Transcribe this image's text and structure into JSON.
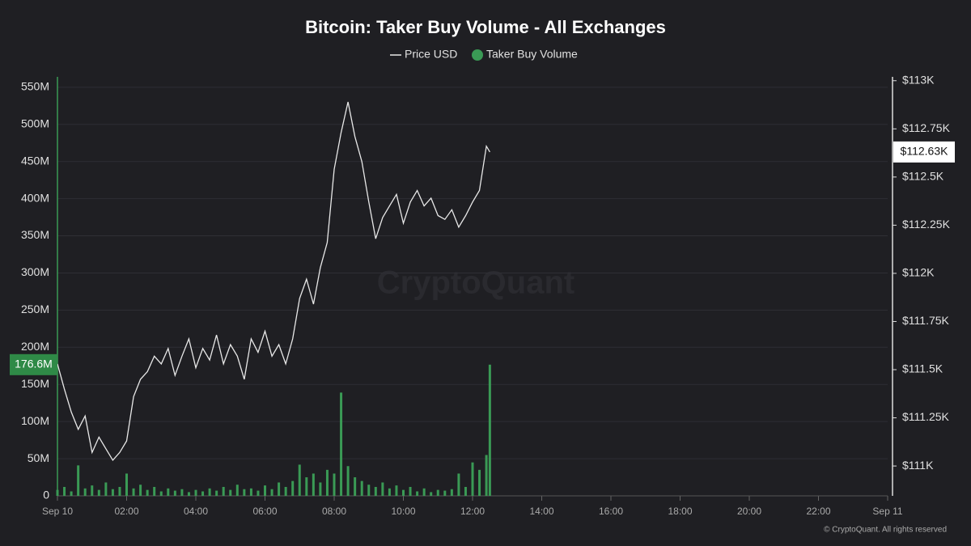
{
  "chart_data": {
    "type": "line",
    "title": "Bitcoin: Taker Buy Volume - All Exchanges",
    "watermark": "CryptoQuant",
    "credit": "© CryptoQuant. All rights reserved",
    "x": [
      0,
      0.2,
      0.4,
      0.6,
      0.8,
      1.0,
      1.2,
      1.4,
      1.6,
      1.8,
      2.0,
      2.2,
      2.4,
      2.6,
      2.8,
      3.0,
      3.2,
      3.4,
      3.6,
      3.8,
      4.0,
      4.2,
      4.4,
      4.6,
      4.8,
      5.0,
      5.2,
      5.4,
      5.6,
      5.8,
      6.0,
      6.2,
      6.4,
      6.6,
      6.8,
      7.0,
      7.2,
      7.4,
      7.6,
      7.8,
      8.0,
      8.2,
      8.4,
      8.6,
      8.8,
      9.0,
      9.2,
      9.4,
      9.6,
      9.8,
      10.0,
      10.2,
      10.4,
      10.6,
      10.8,
      11.0,
      11.2,
      11.4,
      11.6,
      11.8,
      12.0,
      12.2,
      12.4,
      12.5
    ],
    "series": [
      {
        "name": "Price USD",
        "type": "line",
        "axis": "y2",
        "color": "#e8e8e8",
        "values": [
          111.53,
          111.4,
          111.28,
          111.19,
          111.26,
          111.07,
          111.15,
          111.09,
          111.03,
          111.07,
          111.13,
          111.36,
          111.45,
          111.49,
          111.57,
          111.53,
          111.61,
          111.47,
          111.57,
          111.66,
          111.51,
          111.61,
          111.55,
          111.68,
          111.53,
          111.63,
          111.57,
          111.45,
          111.66,
          111.59,
          111.7,
          111.57,
          111.63,
          111.53,
          111.66,
          111.87,
          111.97,
          111.84,
          112.03,
          112.16,
          112.54,
          112.73,
          112.89,
          112.71,
          112.58,
          112.37,
          112.18,
          112.29,
          112.35,
          112.41,
          112.26,
          112.37,
          112.43,
          112.35,
          112.39,
          112.3,
          112.28,
          112.33,
          112.24,
          112.3,
          112.37,
          112.43,
          112.66,
          112.63
        ]
      },
      {
        "name": "Taker Buy Volume",
        "type": "bar",
        "axis": "y",
        "color": "#3a9a55",
        "values": [
          8,
          12,
          6,
          41,
          10,
          14,
          8,
          18,
          9,
          12,
          30,
          10,
          15,
          8,
          12,
          6,
          10,
          7,
          9,
          5,
          8,
          6,
          10,
          7,
          12,
          8,
          15,
          9,
          10,
          7,
          14,
          9,
          18,
          12,
          20,
          42,
          25,
          30,
          18,
          35,
          30,
          139,
          40,
          25,
          20,
          15,
          12,
          18,
          10,
          14,
          8,
          12,
          6,
          10,
          5,
          8,
          7,
          9,
          30,
          12,
          45,
          35,
          55,
          176.6
        ]
      }
    ],
    "xlim": [
      0,
      24
    ],
    "xticks": [
      {
        "value": 0,
        "label": "Sep 10"
      },
      {
        "value": 2,
        "label": "02:00"
      },
      {
        "value": 4,
        "label": "04:00"
      },
      {
        "value": 6,
        "label": "06:00"
      },
      {
        "value": 8,
        "label": "08:00"
      },
      {
        "value": 10,
        "label": "10:00"
      },
      {
        "value": 12,
        "label": "12:00"
      },
      {
        "value": 14,
        "label": "14:00"
      },
      {
        "value": 16,
        "label": "16:00"
      },
      {
        "value": 18,
        "label": "18:00"
      },
      {
        "value": 20,
        "label": "20:00"
      },
      {
        "value": 22,
        "label": "22:00"
      },
      {
        "value": 24,
        "label": "Sep 11"
      }
    ],
    "ylim": [
      0,
      564
    ],
    "yticks": [
      0,
      {
        "value": 50,
        "label": "50M"
      },
      {
        "value": 100,
        "label": "100M"
      },
      {
        "value": 150,
        "label": "150M"
      },
      {
        "value": 200,
        "label": "200M"
      },
      {
        "value": 250,
        "label": "250M"
      },
      {
        "value": 300,
        "label": "300M"
      },
      {
        "value": 350,
        "label": "350M"
      },
      {
        "value": 400,
        "label": "400M"
      },
      {
        "value": 450,
        "label": "450M"
      },
      {
        "value": 500,
        "label": "500M"
      },
      {
        "value": 550,
        "label": "550M"
      }
    ],
    "y2lim": [
      110.845,
      113.02
    ],
    "y2ticks": [
      {
        "value": 111,
        "label": "$111K"
      },
      {
        "value": 111.25,
        "label": "$111.25K"
      },
      {
        "value": 111.5,
        "label": "$111.5K"
      },
      {
        "value": 111.75,
        "label": "$111.75K"
      },
      {
        "value": 112,
        "label": "$112K"
      },
      {
        "value": 112.25,
        "label": "$112.25K"
      },
      {
        "value": 112.5,
        "label": "$112.5K"
      },
      {
        "value": 112.75,
        "label": "$112.75K"
      },
      {
        "value": 113,
        "label": "$113K"
      }
    ],
    "grid": true,
    "annotations": [
      {
        "axis": "y",
        "value": 176.6,
        "label": "176.6M"
      },
      {
        "axis": "y2",
        "value": 112.63,
        "label": "$112.63K"
      }
    ]
  }
}
